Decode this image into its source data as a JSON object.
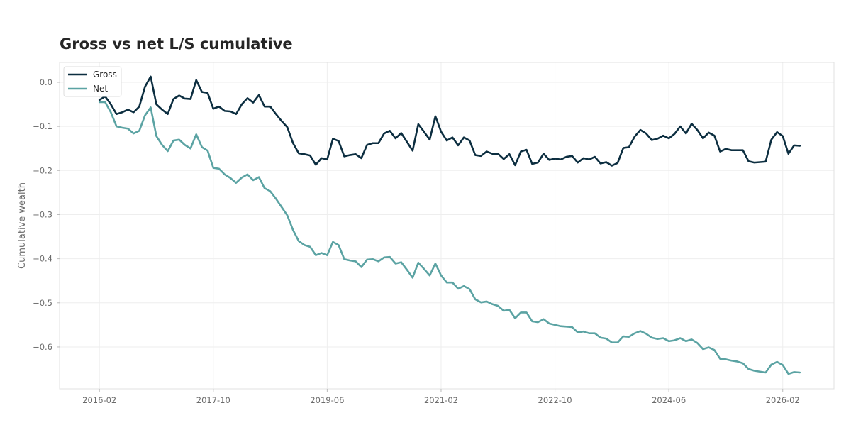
{
  "chart_data": {
    "type": "line",
    "title": "Gross vs net L/S cumulative",
    "xlabel": "",
    "ylabel": "Cumulative wealth",
    "x_start": "2016-02",
    "x_step_months": 1,
    "xlim": [
      "2015-07",
      "2026-11"
    ],
    "ylim": [
      -0.695,
      0.045
    ],
    "x_ticks": [
      "2016-02",
      "2017-10",
      "2019-06",
      "2021-02",
      "2022-10",
      "2024-06",
      "2026-02"
    ],
    "y_ticks": [
      0.0,
      -0.1,
      -0.2,
      -0.3,
      -0.4,
      -0.5,
      -0.6
    ],
    "y_tick_labels": [
      "0.0",
      "−0.1",
      "−0.2",
      "−0.3",
      "−0.4",
      "−0.5",
      "−0.6"
    ],
    "grid": true,
    "legend": "top-left",
    "series": [
      {
        "name": "Gross",
        "color": "#0c2e40",
        "values": [
          -0.04,
          -0.032,
          -0.05,
          -0.072,
          -0.068,
          -0.062,
          -0.068,
          -0.055,
          -0.01,
          0.013,
          -0.05,
          -0.062,
          -0.072,
          -0.038,
          -0.03,
          -0.037,
          -0.038,
          0.005,
          -0.022,
          -0.024,
          -0.06,
          -0.055,
          -0.065,
          -0.066,
          -0.072,
          -0.05,
          -0.036,
          -0.046,
          -0.029,
          -0.055,
          -0.055,
          -0.072,
          -0.088,
          -0.102,
          -0.138,
          -0.161,
          -0.163,
          -0.166,
          -0.187,
          -0.172,
          -0.175,
          -0.128,
          -0.133,
          -0.168,
          -0.165,
          -0.163,
          -0.172,
          -0.142,
          -0.138,
          -0.138,
          -0.116,
          -0.11,
          -0.127,
          -0.115,
          -0.135,
          -0.155,
          -0.095,
          -0.112,
          -0.13,
          -0.077,
          -0.112,
          -0.132,
          -0.125,
          -0.143,
          -0.125,
          -0.132,
          -0.165,
          -0.167,
          -0.157,
          -0.162,
          -0.162,
          -0.174,
          -0.163,
          -0.188,
          -0.157,
          -0.153,
          -0.185,
          -0.182,
          -0.162,
          -0.176,
          -0.173,
          -0.175,
          -0.169,
          -0.167,
          -0.182,
          -0.172,
          -0.175,
          -0.169,
          -0.184,
          -0.181,
          -0.189,
          -0.183,
          -0.149,
          -0.147,
          -0.123,
          -0.108,
          -0.116,
          -0.131,
          -0.128,
          -0.121,
          -0.127,
          -0.117,
          -0.1,
          -0.116,
          -0.094,
          -0.108,
          -0.127,
          -0.114,
          -0.121,
          -0.157,
          -0.151,
          -0.154,
          -0.154,
          -0.154,
          -0.179,
          -0.182,
          -0.181,
          -0.18,
          -0.13,
          -0.113,
          -0.122,
          -0.162,
          -0.143,
          -0.144
        ]
      },
      {
        "name": "Net",
        "color": "#5ba3a3",
        "values": [
          -0.045,
          -0.045,
          -0.068,
          -0.1,
          -0.103,
          -0.105,
          -0.116,
          -0.11,
          -0.075,
          -0.057,
          -0.122,
          -0.142,
          -0.156,
          -0.132,
          -0.13,
          -0.142,
          -0.15,
          -0.118,
          -0.147,
          -0.155,
          -0.194,
          -0.196,
          -0.209,
          -0.217,
          -0.228,
          -0.216,
          -0.209,
          -0.222,
          -0.215,
          -0.24,
          -0.247,
          -0.264,
          -0.283,
          -0.302,
          -0.335,
          -0.36,
          -0.369,
          -0.373,
          -0.392,
          -0.387,
          -0.392,
          -0.362,
          -0.369,
          -0.401,
          -0.404,
          -0.406,
          -0.419,
          -0.402,
          -0.401,
          -0.406,
          -0.397,
          -0.396,
          -0.411,
          -0.408,
          -0.425,
          -0.443,
          -0.409,
          -0.423,
          -0.438,
          -0.411,
          -0.438,
          -0.454,
          -0.454,
          -0.468,
          -0.462,
          -0.469,
          -0.492,
          -0.499,
          -0.497,
          -0.503,
          -0.507,
          -0.518,
          -0.516,
          -0.535,
          -0.522,
          -0.522,
          -0.542,
          -0.544,
          -0.537,
          -0.547,
          -0.55,
          -0.553,
          -0.554,
          -0.555,
          -0.567,
          -0.565,
          -0.569,
          -0.569,
          -0.579,
          -0.581,
          -0.59,
          -0.59,
          -0.576,
          -0.577,
          -0.569,
          -0.564,
          -0.57,
          -0.579,
          -0.582,
          -0.58,
          -0.587,
          -0.585,
          -0.58,
          -0.587,
          -0.583,
          -0.591,
          -0.605,
          -0.601,
          -0.607,
          -0.627,
          -0.628,
          -0.631,
          -0.633,
          -0.637,
          -0.65,
          -0.654,
          -0.656,
          -0.658,
          -0.64,
          -0.634,
          -0.641,
          -0.661,
          -0.657,
          -0.658
        ]
      }
    ]
  }
}
